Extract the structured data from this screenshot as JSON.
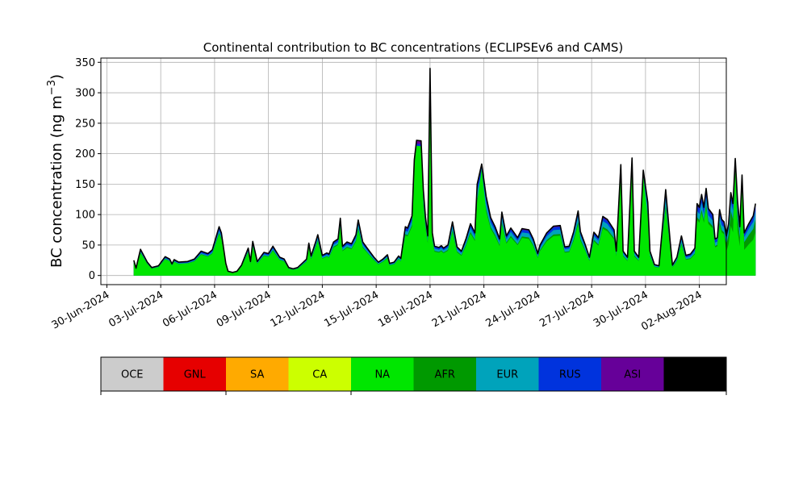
{
  "chart_data": {
    "type": "area",
    "title": "Continental contribution to BC concentrations (ECLIPSEv6 and CAMS)",
    "ylabel": "BC concentration (ng m",
    "ylabel_sup": "−3",
    "ylabel_close": ")",
    "xlabel": "",
    "ylim": [
      -15,
      357
    ],
    "xlim": [
      "2024-06-29T16:00",
      "2024-08-03T12:00"
    ],
    "grid": true,
    "yticks": [
      0,
      50,
      100,
      150,
      200,
      250,
      300,
      350
    ],
    "xticks": [
      "30-Jun-2024",
      "03-Jul-2024",
      "06-Jul-2024",
      "09-Jul-2024",
      "12-Jul-2024",
      "15-Jul-2024",
      "18-Jul-2024",
      "21-Jul-2024",
      "24-Jul-2024",
      "27-Jul-2024",
      "30-Jul-2024",
      "02-Aug-2024"
    ],
    "legend": [
      {
        "name": "OCE",
        "color": "#cccccc"
      },
      {
        "name": "GNL",
        "color": "#e60000"
      },
      {
        "name": "SA",
        "color": "#ffaa00"
      },
      {
        "name": "CA",
        "color": "#ccff00"
      },
      {
        "name": "NA",
        "color": "#00e600"
      },
      {
        "name": "AFR",
        "color": "#009900"
      },
      {
        "name": "EUR",
        "color": "#00a3bb"
      },
      {
        "name": "RUS",
        "color": "#0033dd"
      },
      {
        "name": "ASI",
        "color": "#660099"
      },
      {
        "name": "AUS",
        "color": "#000000"
      }
    ],
    "total_series": [
      [
        "2024-07-01T12:00",
        25
      ],
      [
        "2024-07-01T15:00",
        12
      ],
      [
        "2024-07-01T21:00",
        43
      ],
      [
        "2024-07-02T06:00",
        22
      ],
      [
        "2024-07-02T12:00",
        13
      ],
      [
        "2024-07-02T21:00",
        16
      ],
      [
        "2024-07-03T06:00",
        31
      ],
      [
        "2024-07-03T12:00",
        27
      ],
      [
        "2024-07-03T15:00",
        19
      ],
      [
        "2024-07-03T18:00",
        26
      ],
      [
        "2024-07-04T00:00",
        22
      ],
      [
        "2024-07-04T12:00",
        23
      ],
      [
        "2024-07-04T21:00",
        27
      ],
      [
        "2024-07-05T06:00",
        40
      ],
      [
        "2024-07-05T15:00",
        36
      ],
      [
        "2024-07-05T21:00",
        42
      ],
      [
        "2024-07-06T06:00",
        80
      ],
      [
        "2024-07-06T09:00",
        70
      ],
      [
        "2024-07-06T15:00",
        20
      ],
      [
        "2024-07-06T18:00",
        7
      ],
      [
        "2024-07-07T00:00",
        5
      ],
      [
        "2024-07-07T06:00",
        7
      ],
      [
        "2024-07-07T12:00",
        17
      ],
      [
        "2024-07-07T21:00",
        45
      ],
      [
        "2024-07-08T00:00",
        23
      ],
      [
        "2024-07-08T03:00",
        56
      ],
      [
        "2024-07-08T09:00",
        23
      ],
      [
        "2024-07-08T18:00",
        38
      ],
      [
        "2024-07-09T00:00",
        36
      ],
      [
        "2024-07-09T06:00",
        48
      ],
      [
        "2024-07-09T15:00",
        30
      ],
      [
        "2024-07-09T21:00",
        27
      ],
      [
        "2024-07-10T03:00",
        13
      ],
      [
        "2024-07-10T09:00",
        11
      ],
      [
        "2024-07-10T15:00",
        13
      ],
      [
        "2024-07-10T21:00",
        20
      ],
      [
        "2024-07-11T03:00",
        27
      ],
      [
        "2024-07-11T06:00",
        53
      ],
      [
        "2024-07-11T09:00",
        32
      ],
      [
        "2024-07-11T15:00",
        55
      ],
      [
        "2024-07-11T18:00",
        67
      ],
      [
        "2024-07-12T00:00",
        33
      ],
      [
        "2024-07-12T06:00",
        37
      ],
      [
        "2024-07-12T09:00",
        35
      ],
      [
        "2024-07-12T15:00",
        55
      ],
      [
        "2024-07-12T21:00",
        60
      ],
      [
        "2024-07-13T00:00",
        94
      ],
      [
        "2024-07-13T03:00",
        48
      ],
      [
        "2024-07-13T09:00",
        55
      ],
      [
        "2024-07-13T15:00",
        52
      ],
      [
        "2024-07-13T21:00",
        67
      ],
      [
        "2024-07-14T00:00",
        91
      ],
      [
        "2024-07-14T06:00",
        55
      ],
      [
        "2024-07-14T12:00",
        45
      ],
      [
        "2024-07-14T21:00",
        30
      ],
      [
        "2024-07-15T03:00",
        22
      ],
      [
        "2024-07-15T09:00",
        27
      ],
      [
        "2024-07-15T15:00",
        34
      ],
      [
        "2024-07-15T18:00",
        20
      ],
      [
        "2024-07-16T00:00",
        22
      ],
      [
        "2024-07-16T06:00",
        32
      ],
      [
        "2024-07-16T09:00",
        28
      ],
      [
        "2024-07-16T15:00",
        80
      ],
      [
        "2024-07-16T18:00",
        78
      ],
      [
        "2024-07-17T00:00",
        98
      ],
      [
        "2024-07-17T03:00",
        190
      ],
      [
        "2024-07-17T06:00",
        222
      ],
      [
        "2024-07-17T12:00",
        221
      ],
      [
        "2024-07-17T15:00",
        140
      ],
      [
        "2024-07-17T18:00",
        95
      ],
      [
        "2024-07-17T21:00",
        65
      ],
      [
        "2024-07-18T00:00",
        340
      ],
      [
        "2024-07-18T03:00",
        70
      ],
      [
        "2024-07-18T06:00",
        48
      ],
      [
        "2024-07-18T12:00",
        46
      ],
      [
        "2024-07-18T15:00",
        49
      ],
      [
        "2024-07-18T18:00",
        45
      ],
      [
        "2024-07-19T00:00",
        50
      ],
      [
        "2024-07-19T06:00",
        88
      ],
      [
        "2024-07-19T12:00",
        47
      ],
      [
        "2024-07-19T18:00",
        40
      ],
      [
        "2024-07-20T00:00",
        60
      ],
      [
        "2024-07-20T06:00",
        85
      ],
      [
        "2024-07-20T12:00",
        70
      ],
      [
        "2024-07-20T15:00",
        150
      ],
      [
        "2024-07-20T21:00",
        183
      ],
      [
        "2024-07-21T03:00",
        130
      ],
      [
        "2024-07-21T09:00",
        95
      ],
      [
        "2024-07-21T15:00",
        80
      ],
      [
        "2024-07-21T21:00",
        60
      ],
      [
        "2024-07-22T00:00",
        104
      ],
      [
        "2024-07-22T06:00",
        65
      ],
      [
        "2024-07-22T12:00",
        78
      ],
      [
        "2024-07-22T21:00",
        62
      ],
      [
        "2024-07-23T03:00",
        77
      ],
      [
        "2024-07-23T12:00",
        75
      ],
      [
        "2024-07-23T18:00",
        60
      ],
      [
        "2024-07-24T00:00",
        36
      ],
      [
        "2024-07-24T03:00",
        50
      ],
      [
        "2024-07-24T12:00",
        70
      ],
      [
        "2024-07-24T21:00",
        81
      ],
      [
        "2024-07-25T06:00",
        82
      ],
      [
        "2024-07-25T12:00",
        47
      ],
      [
        "2024-07-25T18:00",
        48
      ],
      [
        "2024-07-26T00:00",
        72
      ],
      [
        "2024-07-26T06:00",
        106
      ],
      [
        "2024-07-26T09:00",
        72
      ],
      [
        "2024-07-26T15:00",
        52
      ],
      [
        "2024-07-26T21:00",
        30
      ],
      [
        "2024-07-27T03:00",
        71
      ],
      [
        "2024-07-27T09:00",
        62
      ],
      [
        "2024-07-27T15:00",
        97
      ],
      [
        "2024-07-27T21:00",
        92
      ],
      [
        "2024-07-28T06:00",
        75
      ],
      [
        "2024-07-28T09:00",
        40
      ],
      [
        "2024-07-28T15:00",
        182
      ],
      [
        "2024-07-28T18:00",
        40
      ],
      [
        "2024-07-29T00:00",
        30
      ],
      [
        "2024-07-29T06:00",
        193
      ],
      [
        "2024-07-29T09:00",
        40
      ],
      [
        "2024-07-29T15:00",
        30
      ],
      [
        "2024-07-29T21:00",
        173
      ],
      [
        "2024-07-30T03:00",
        120
      ],
      [
        "2024-07-30T06:00",
        40
      ],
      [
        "2024-07-30T12:00",
        18
      ],
      [
        "2024-07-30T18:00",
        16
      ],
      [
        "2024-07-31T00:00",
        98
      ],
      [
        "2024-07-31T03:00",
        141
      ],
      [
        "2024-07-31T09:00",
        55
      ],
      [
        "2024-07-31T12:00",
        17
      ],
      [
        "2024-07-31T18:00",
        30
      ],
      [
        "2024-08-01T00:00",
        65
      ],
      [
        "2024-08-01T06:00",
        33
      ],
      [
        "2024-08-01T12:00",
        35
      ],
      [
        "2024-08-01T18:00",
        45
      ],
      [
        "2024-08-01T21:00",
        118
      ],
      [
        "2024-08-02T00:00",
        112
      ],
      [
        "2024-08-02T03:00",
        133
      ],
      [
        "2024-08-02T06:00",
        112
      ],
      [
        "2024-08-02T09:00",
        143
      ],
      [
        "2024-08-02T12:00",
        110
      ],
      [
        "2024-08-02T18:00",
        100
      ],
      [
        "2024-08-02T21:00",
        60
      ],
      [
        "2024-08-03T00:00",
        62
      ],
      [
        "2024-08-03T03:00",
        108
      ],
      [
        "2024-08-03T06:00",
        92
      ],
      [
        "2024-08-03T09:00",
        88
      ],
      [
        "2024-08-03T12:00",
        65
      ],
      [
        "2024-08-03T15:00",
        85
      ],
      [
        "2024-08-03T18:00",
        136
      ],
      [
        "2024-08-03T21:00",
        118
      ],
      [
        "2024-08-04T00:00",
        192
      ],
      [
        "2024-08-04T03:00",
        123
      ],
      [
        "2024-08-04T06:00",
        80
      ],
      [
        "2024-08-04T09:00",
        165
      ],
      [
        "2024-08-04T12:00",
        70
      ],
      [
        "2024-08-04T18:00",
        85
      ],
      [
        "2024-08-05T00:00",
        98
      ],
      [
        "2024-08-05T03:00",
        118
      ]
    ]
  }
}
